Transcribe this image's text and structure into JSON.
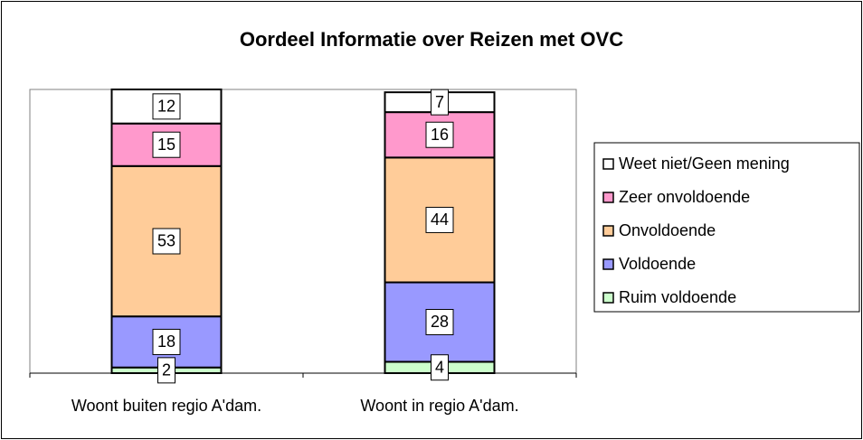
{
  "chart_data": {
    "type": "stacked-bar",
    "title": "Oordeel Informatie over Reizen met OVC",
    "categories": [
      "Woont buiten regio A'dam.",
      "Woont in regio A'dam."
    ],
    "series": [
      {
        "name": "Ruim voldoende",
        "color": "#ccffcc",
        "values": [
          2,
          4
        ]
      },
      {
        "name": "Voldoende",
        "color": "#9999ff",
        "values": [
          18,
          28
        ]
      },
      {
        "name": "Onvoldoende",
        "color": "#ffcc99",
        "values": [
          53,
          44
        ]
      },
      {
        "name": "Zeer onvoldoende",
        "color": "#ff99cc",
        "values": [
          15,
          16
        ]
      },
      {
        "name": "Weet niet/Geen mening",
        "color": "#ffffff",
        "values": [
          12,
          7
        ]
      }
    ],
    "ylim": [
      0,
      100
    ],
    "legend": "right"
  }
}
